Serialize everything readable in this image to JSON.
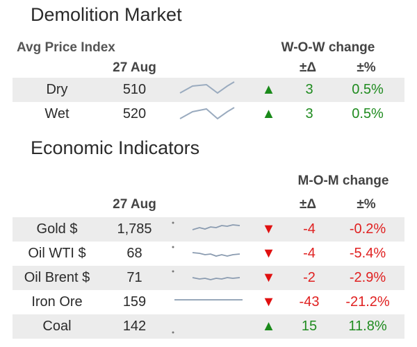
{
  "demolition": {
    "title": "Demolition Market",
    "subheader": "Avg Price Index",
    "change_header": "W-O-W change",
    "date": "27 Aug",
    "delta_header": "±Δ",
    "pct_header": "±%",
    "rows": [
      {
        "label": "Dry",
        "value": "510",
        "arrow": "▲",
        "delta": "3",
        "pct": "0.5%",
        "direction": "up",
        "spark_icon": "zigzag-sparkline"
      },
      {
        "label": "Wet",
        "value": "520",
        "arrow": "▲",
        "delta": "3",
        "pct": "0.5%",
        "direction": "up",
        "spark_icon": "zigzag-sparkline"
      }
    ]
  },
  "economic": {
    "title": "Economic Indicators",
    "change_header": "M-O-M change",
    "date": "27 Aug",
    "delta_header": "±Δ",
    "pct_header": "±%",
    "rows": [
      {
        "label": "Gold $",
        "value": "1,785",
        "arrow": "▼",
        "delta": "-4",
        "pct": "-0.2%",
        "direction": "down",
        "spark_icon": "wavy-sparkline"
      },
      {
        "label": "Oil WTI $",
        "value": "68",
        "arrow": "▼",
        "delta": "-4",
        "pct": "-5.4%",
        "direction": "down",
        "spark_icon": "wavy-sparkline"
      },
      {
        "label": "Oil Brent $",
        "value": "71",
        "arrow": "▼",
        "delta": "-2",
        "pct": "-2.9%",
        "direction": "down",
        "spark_icon": "wavy-sparkline"
      },
      {
        "label": "Iron Ore",
        "value": "159",
        "arrow": "▼",
        "delta": "-43",
        "pct": "-21.2%",
        "direction": "down",
        "spark_icon": "flat-sparkline"
      },
      {
        "label": "Coal",
        "value": "142",
        "arrow": "▲",
        "delta": "15",
        "pct": "11.8%",
        "direction": "up",
        "spark_icon": "dot-sparkline"
      }
    ]
  },
  "colors": {
    "up": "#1f8b1f",
    "down": "#e02020",
    "spark": "#9aabbf",
    "shade": "#ececec"
  }
}
